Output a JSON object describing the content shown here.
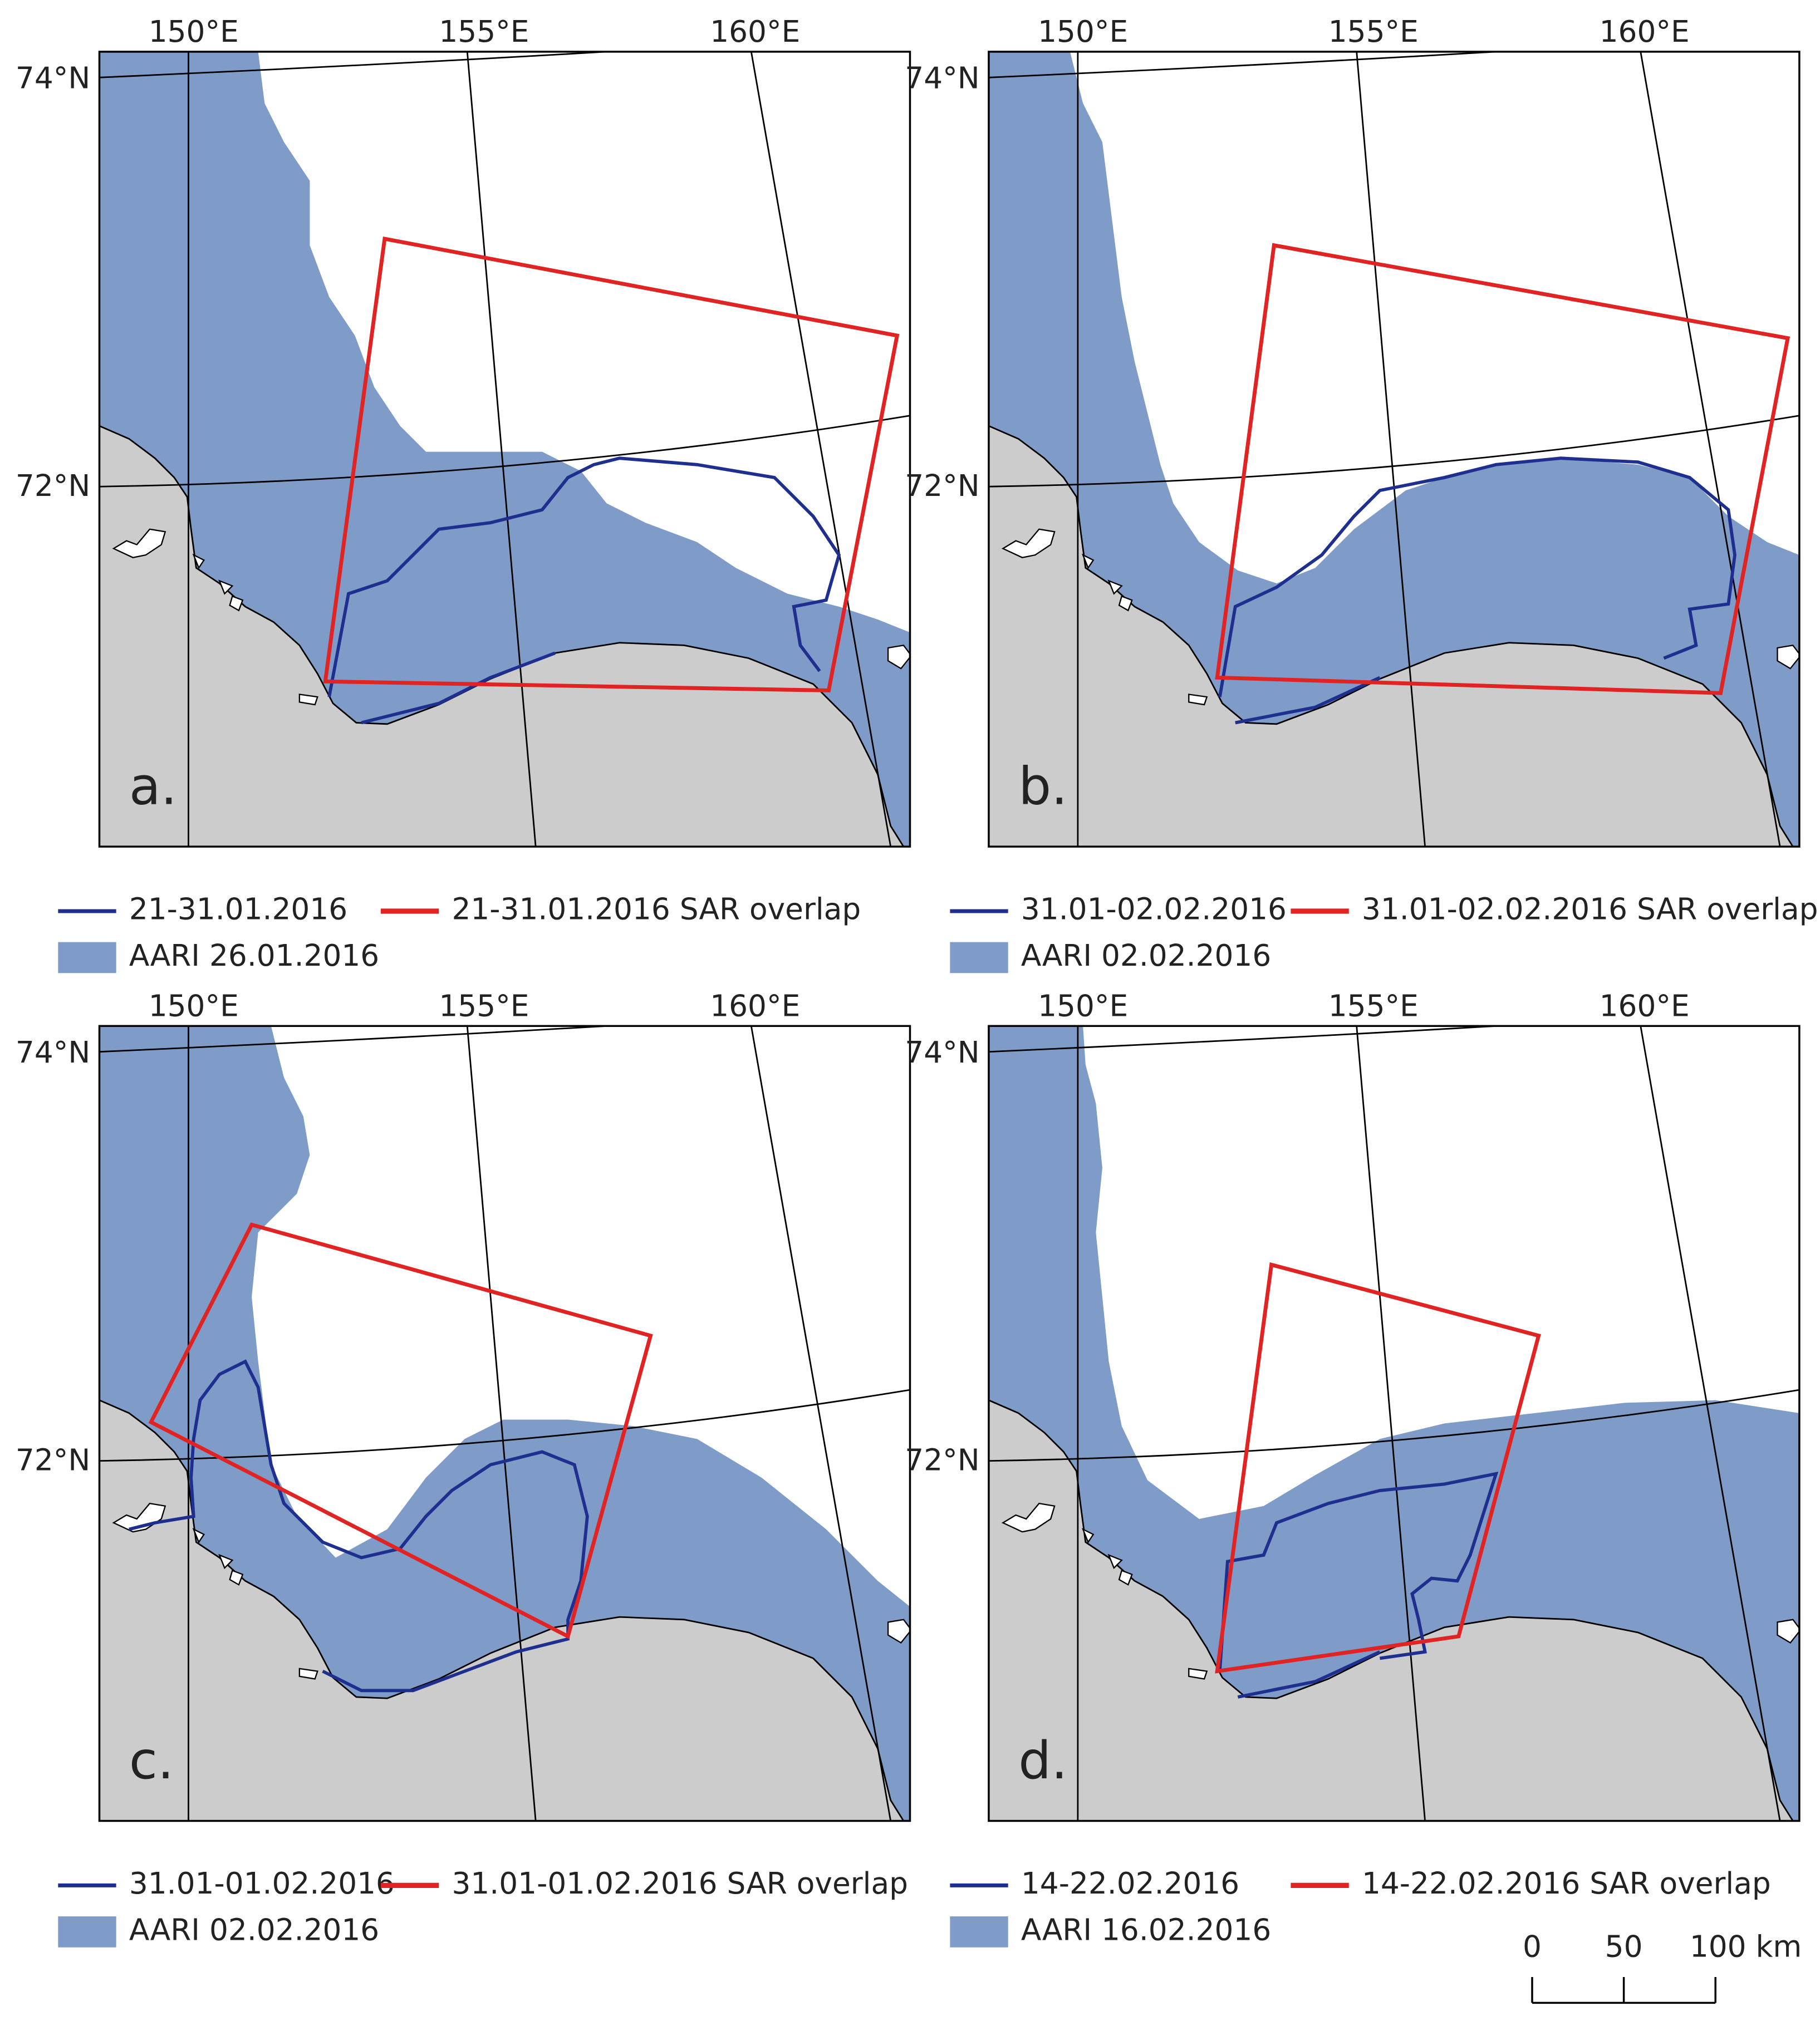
{
  "axes": {
    "lon": [
      "150°E",
      "155°E",
      "160°E"
    ],
    "lat": [
      "74°N",
      "72°N"
    ]
  },
  "panels": [
    {
      "label": "a.",
      "legend": {
        "track": "21-31.01.2016",
        "sar": "21-31.01.2016 SAR overlap",
        "aari": "AARI 26.01.2016"
      }
    },
    {
      "label": "b.",
      "legend": {
        "track": "31.01-02.02.2016",
        "sar": "31.01-02.02.2016 SAR overlap",
        "aari": "AARI 02.02.2016"
      }
    },
    {
      "label": "c.",
      "legend": {
        "track": "31.01-01.02.2016",
        "sar": "31.01-01.02.2016 SAR overlap",
        "aari": "AARI 02.02.2016"
      }
    },
    {
      "label": "d.",
      "legend": {
        "track": "14-22.02.2016",
        "sar": "14-22.02.2016 SAR overlap",
        "aari": "AARI 16.02.2016"
      }
    }
  ],
  "scale_bar": {
    "labels": [
      "0",
      "50",
      "100 km"
    ]
  }
}
